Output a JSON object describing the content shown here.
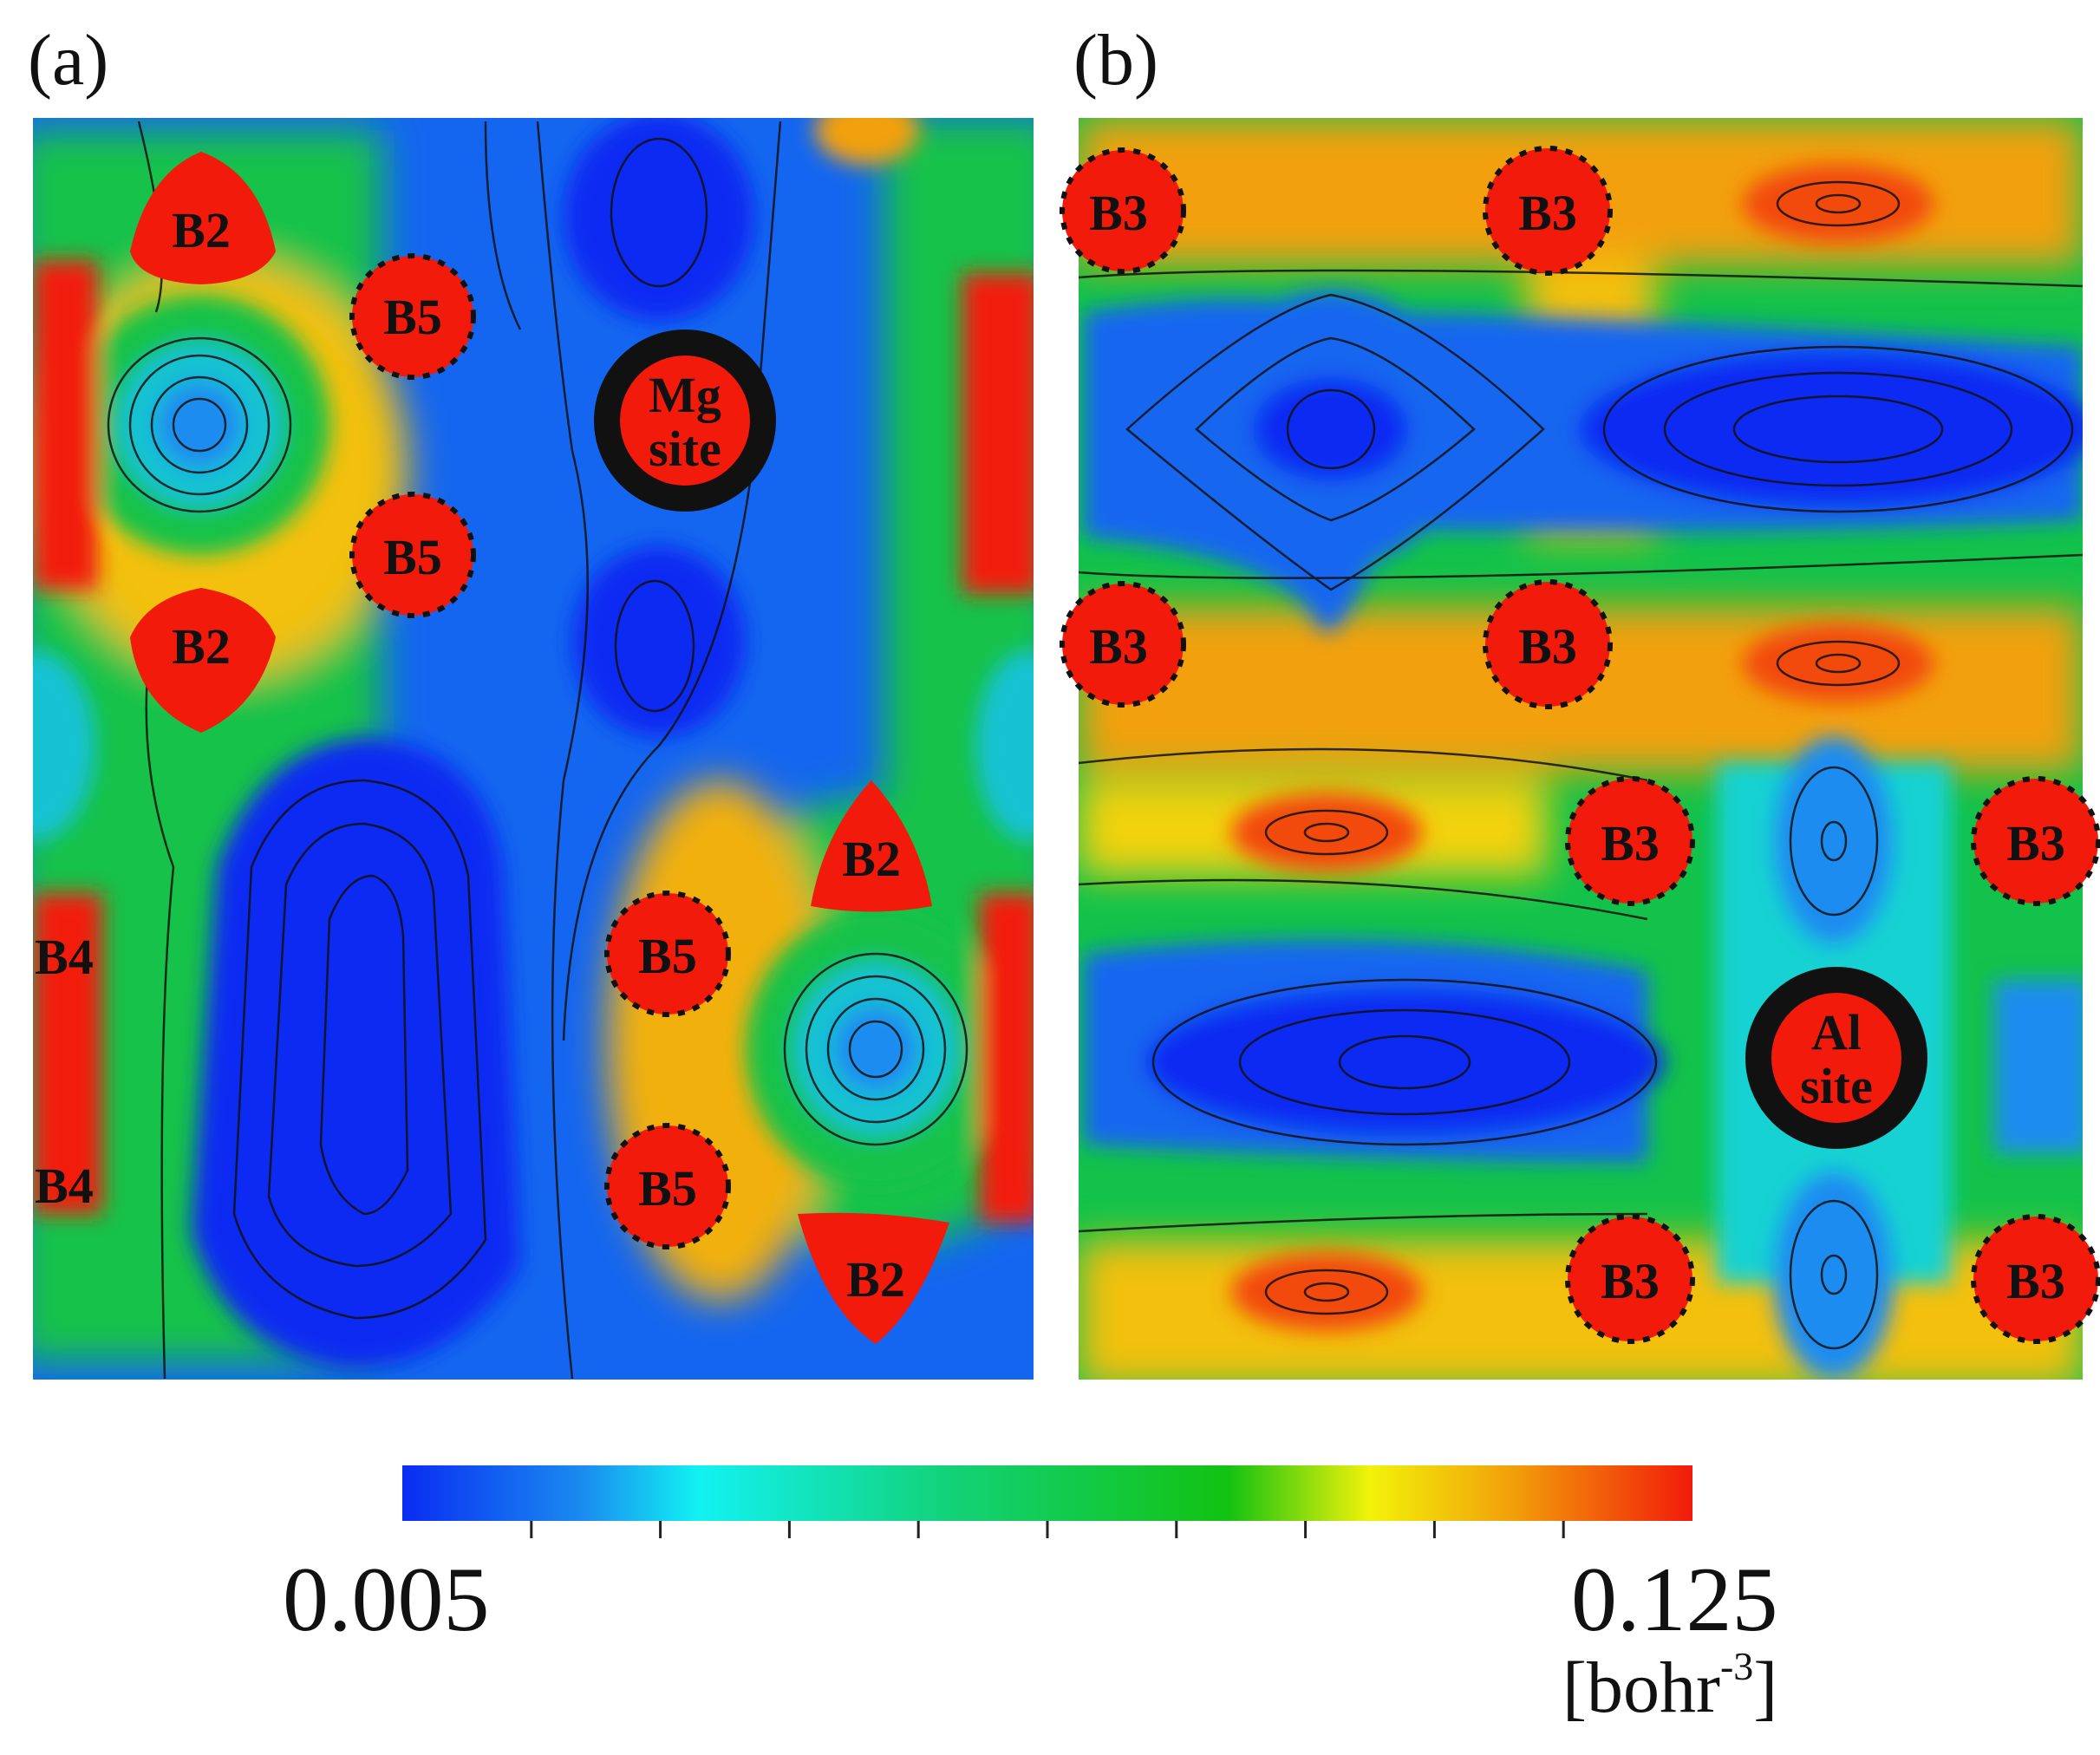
{
  "panels": [
    {
      "label": "(a)",
      "site_label": [
        "Mg",
        "site"
      ],
      "atoms": [
        {
          "id": "B2",
          "label": "B2"
        },
        {
          "id": "B5",
          "label": "B5"
        },
        {
          "id": "B5",
          "label": "B5"
        },
        {
          "id": "B2",
          "label": "B2"
        },
        {
          "id": "B2",
          "label": "B2"
        },
        {
          "id": "B5",
          "label": "B5"
        },
        {
          "id": "B5",
          "label": "B5"
        },
        {
          "id": "B2",
          "label": "B2"
        },
        {
          "id": "B4",
          "label": "B4"
        },
        {
          "id": "B4",
          "label": "B4"
        }
      ]
    },
    {
      "label": "(b)",
      "site_label": [
        "Al",
        "site"
      ],
      "atoms": [
        {
          "id": "B3",
          "label": "B3"
        },
        {
          "id": "B3",
          "label": "B3"
        },
        {
          "id": "B3",
          "label": "B3"
        },
        {
          "id": "B3",
          "label": "B3"
        },
        {
          "id": "B3",
          "label": "B3"
        },
        {
          "id": "B3",
          "label": "B3"
        },
        {
          "id": "B3",
          "label": "B3"
        },
        {
          "id": "B3",
          "label": "B3"
        }
      ]
    }
  ],
  "colorbar": {
    "min_label": "0.005",
    "max_label": "0.125",
    "unit_text": "[bohr",
    "unit_exp": "-3",
    "unit_close": "]",
    "min": 0.005,
    "max": 0.125,
    "ticks": 10,
    "colors": [
      "#0a2cf2",
      "#1a8cf0",
      "#12f2f2",
      "#12d27a",
      "#12c212",
      "#f2f20a",
      "#f2a00a",
      "#f21a0a"
    ]
  }
}
